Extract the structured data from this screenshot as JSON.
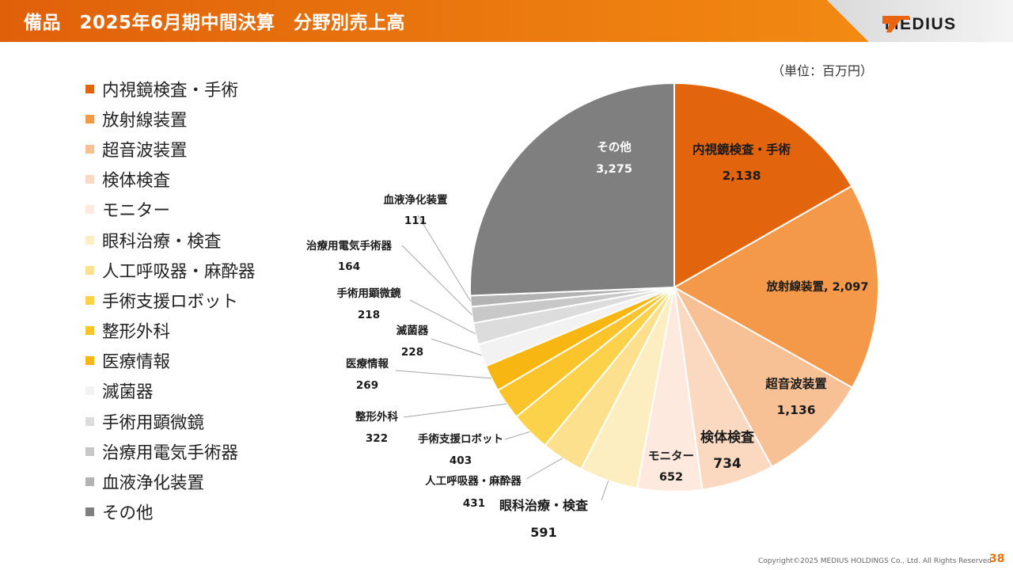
{
  "header": {
    "title": "備品　2025年6月期中間決算　分野別売上高",
    "brand_color": "#e0600a",
    "gradient_end": "#f28a12"
  },
  "logo": {
    "icon": "medius-logo-icon",
    "text": "MEDIUS"
  },
  "unit_label": "（単位：百万円）",
  "footer": {
    "copyright": "Copyright©2025 MEDIUS HOLDINGS Co., Ltd. All Rights Reserved",
    "page": "38"
  },
  "chart_data": {
    "type": "pie",
    "title": "",
    "unit": "百万円",
    "start": "12 o'clock, clockwise",
    "legend_position": "left",
    "slices": [
      {
        "label": "内視鏡検査・手術",
        "value": 2138,
        "display": "2,138",
        "color": "#e2640c"
      },
      {
        "label": "放射線装置",
        "value": 2097,
        "display": "2,097",
        "color": "#f4984a"
      },
      {
        "label": "超音波装置",
        "value": 1136,
        "display": "1,136",
        "color": "#f8c195"
      },
      {
        "label": "検体検査",
        "value": 734,
        "display": "734",
        "color": "#fbd9c0"
      },
      {
        "label": "モニター",
        "value": 652,
        "display": "652",
        "color": "#fde9dd"
      },
      {
        "label": "眼科治療・検査",
        "value": 591,
        "display": "591",
        "color": "#fdeec1"
      },
      {
        "label": "人工呼吸器・麻酔器",
        "value": 431,
        "display": "431",
        "color": "#fde08e"
      },
      {
        "label": "手術支援ロボット",
        "value": 403,
        "display": "403",
        "color": "#fcd24a"
      },
      {
        "label": "整形外科",
        "value": 322,
        "display": "322",
        "color": "#fbc42b"
      },
      {
        "label": "医療情報",
        "value": 269,
        "display": "269",
        "color": "#f7b611"
      },
      {
        "label": "滅菌器",
        "value": 228,
        "display": "228",
        "color": "#f2f2f2"
      },
      {
        "label": "手術用顕微鏡",
        "value": 218,
        "display": "218",
        "color": "#dcdcdc"
      },
      {
        "label": "治療用電気手術器",
        "value": 164,
        "display": "164",
        "color": "#c8c8c8"
      },
      {
        "label": "血液浄化装置",
        "value": 111,
        "display": "111",
        "color": "#b3b3b3"
      },
      {
        "label": "その他",
        "value": 3275,
        "display": "3,275",
        "color": "#7f7f7f"
      }
    ]
  }
}
